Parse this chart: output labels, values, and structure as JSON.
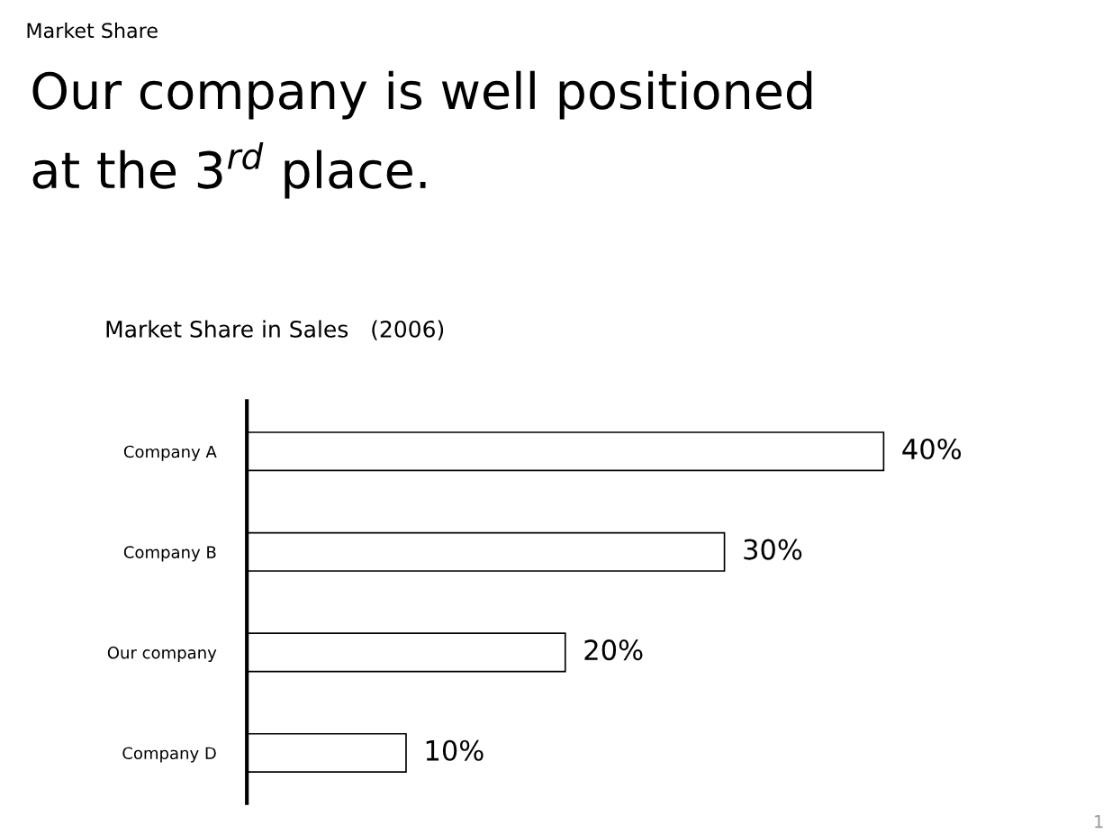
{
  "chart_data": {
    "type": "bar",
    "orientation": "horizontal",
    "title": "Market Share",
    "subtitle": "Our company is well positioned\nat the 3$^{rd}$ place.",
    "annotations": [
      "Market Share in Sales   (2006)",
      "1"
    ],
    "categories": [
      "Company A",
      "Company B",
      "Our company",
      "Company D"
    ],
    "values": [
      40,
      30,
      20,
      10
    ],
    "value_labels": [
      "40%",
      "30%",
      "20%",
      "10%"
    ],
    "color": "#ffffff",
    "grid": false,
    "legend": false,
    "tick_labels": "y"
  }
}
